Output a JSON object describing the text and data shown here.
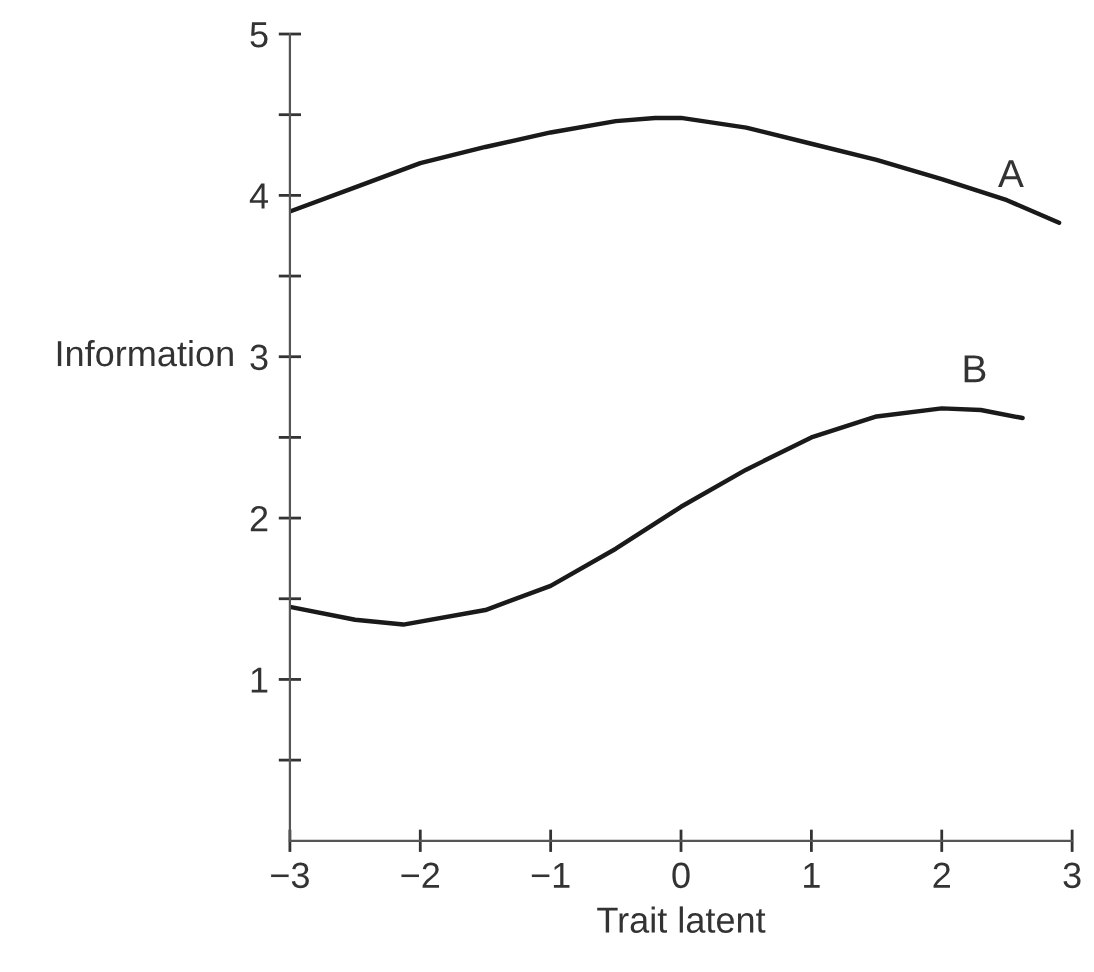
{
  "chart_data": {
    "type": "line",
    "xlabel": "Trait latent",
    "ylabel": "Information",
    "xlim": [
      -3,
      3
    ],
    "ylim": [
      0,
      5
    ],
    "xticks": [
      -3,
      -2,
      -1,
      0,
      1,
      2,
      3
    ],
    "yticks": [
      {
        "value": 0.5,
        "label": null
      },
      1,
      {
        "value": 1.5,
        "label": null
      },
      2,
      {
        "value": 2.5,
        "label": null
      },
      3,
      {
        "value": 3.5,
        "label": null
      },
      4,
      {
        "value": 4.5,
        "label": null
      },
      5
    ],
    "grid": false,
    "legend": false,
    "marker": "none",
    "line_style": "solid",
    "series": [
      {
        "name": "A",
        "color": "#1a1a1a",
        "x": [
          -3,
          -2.5,
          -2,
          -1.5,
          -1,
          -0.5,
          -0.2,
          0,
          0.5,
          1,
          1.5,
          2,
          2.5,
          2.9
        ],
        "values": [
          3.9,
          4.05,
          4.2,
          4.3,
          4.39,
          4.46,
          4.48,
          4.48,
          4.42,
          4.32,
          4.22,
          4.1,
          3.97,
          3.83
        ]
      },
      {
        "name": "B",
        "color": "#1a1a1a",
        "x": [
          -3,
          -2.5,
          -2.13,
          -1.5,
          -1,
          -0.5,
          0,
          0.5,
          1,
          1.5,
          2,
          2.3,
          2.62
        ],
        "values": [
          1.45,
          1.37,
          1.34,
          1.43,
          1.58,
          1.81,
          2.07,
          2.3,
          2.5,
          2.63,
          2.68,
          2.67,
          2.62
        ]
      }
    ]
  }
}
